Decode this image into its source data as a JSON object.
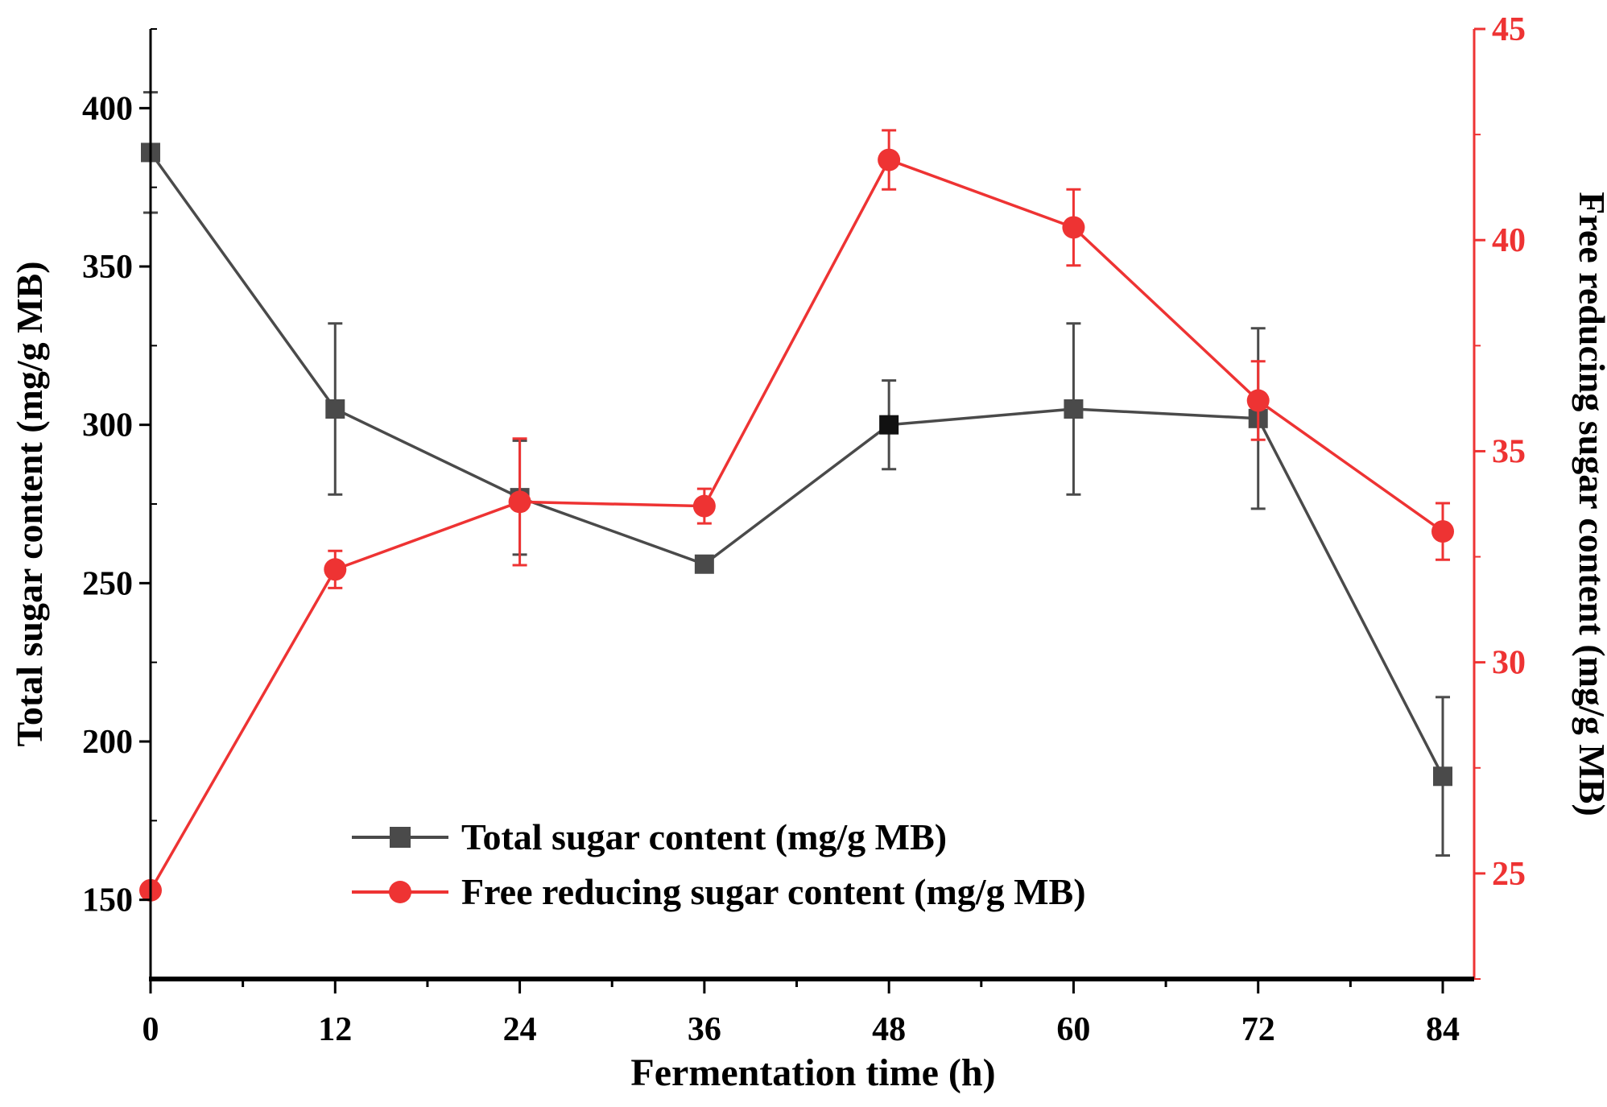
{
  "chart_data": {
    "type": "line",
    "title": "",
    "xlabel": "Fermentation time (h)",
    "ylabel": "Total sugar content (mg/g MB)",
    "y2label": "Free reducing sugar content (mg/g MB)",
    "x": [
      0,
      12,
      24,
      36,
      48,
      60,
      72,
      84
    ],
    "xticks": [
      "0",
      "12",
      "24",
      "36",
      "48",
      "60",
      "72",
      "84"
    ],
    "xlim": [
      0,
      86
    ],
    "ylim": [
      125,
      425
    ],
    "yticks": [
      "150",
      "200",
      "250",
      "300",
      "350",
      "400"
    ],
    "y2lim": [
      22.5,
      45
    ],
    "y2ticks": [
      "25",
      "30",
      "35",
      "40",
      "45"
    ],
    "grid": false,
    "legend_position": "bottom-center",
    "colors": {
      "total": "#4a4a4a",
      "reducing": "#ee3333",
      "axis": "#000000"
    },
    "series": [
      {
        "name": "Total sugar content (mg/g MB)",
        "axis": "left",
        "marker": "square",
        "values": [
          386,
          305,
          277,
          256,
          300,
          305,
          302,
          189
        ],
        "errors": [
          19,
          27,
          18,
          1,
          14,
          27,
          28.5,
          25
        ]
      },
      {
        "name": "Free reducing sugar content (mg/g MB)",
        "axis": "right",
        "marker": "circle",
        "values": [
          24.6,
          32.2,
          33.8,
          33.7,
          41.9,
          40.3,
          36.2,
          33.1
        ],
        "errors": [
          0.05,
          0.44,
          1.5,
          0.41,
          0.7,
          0.9,
          0.93,
          0.67
        ]
      }
    ]
  }
}
